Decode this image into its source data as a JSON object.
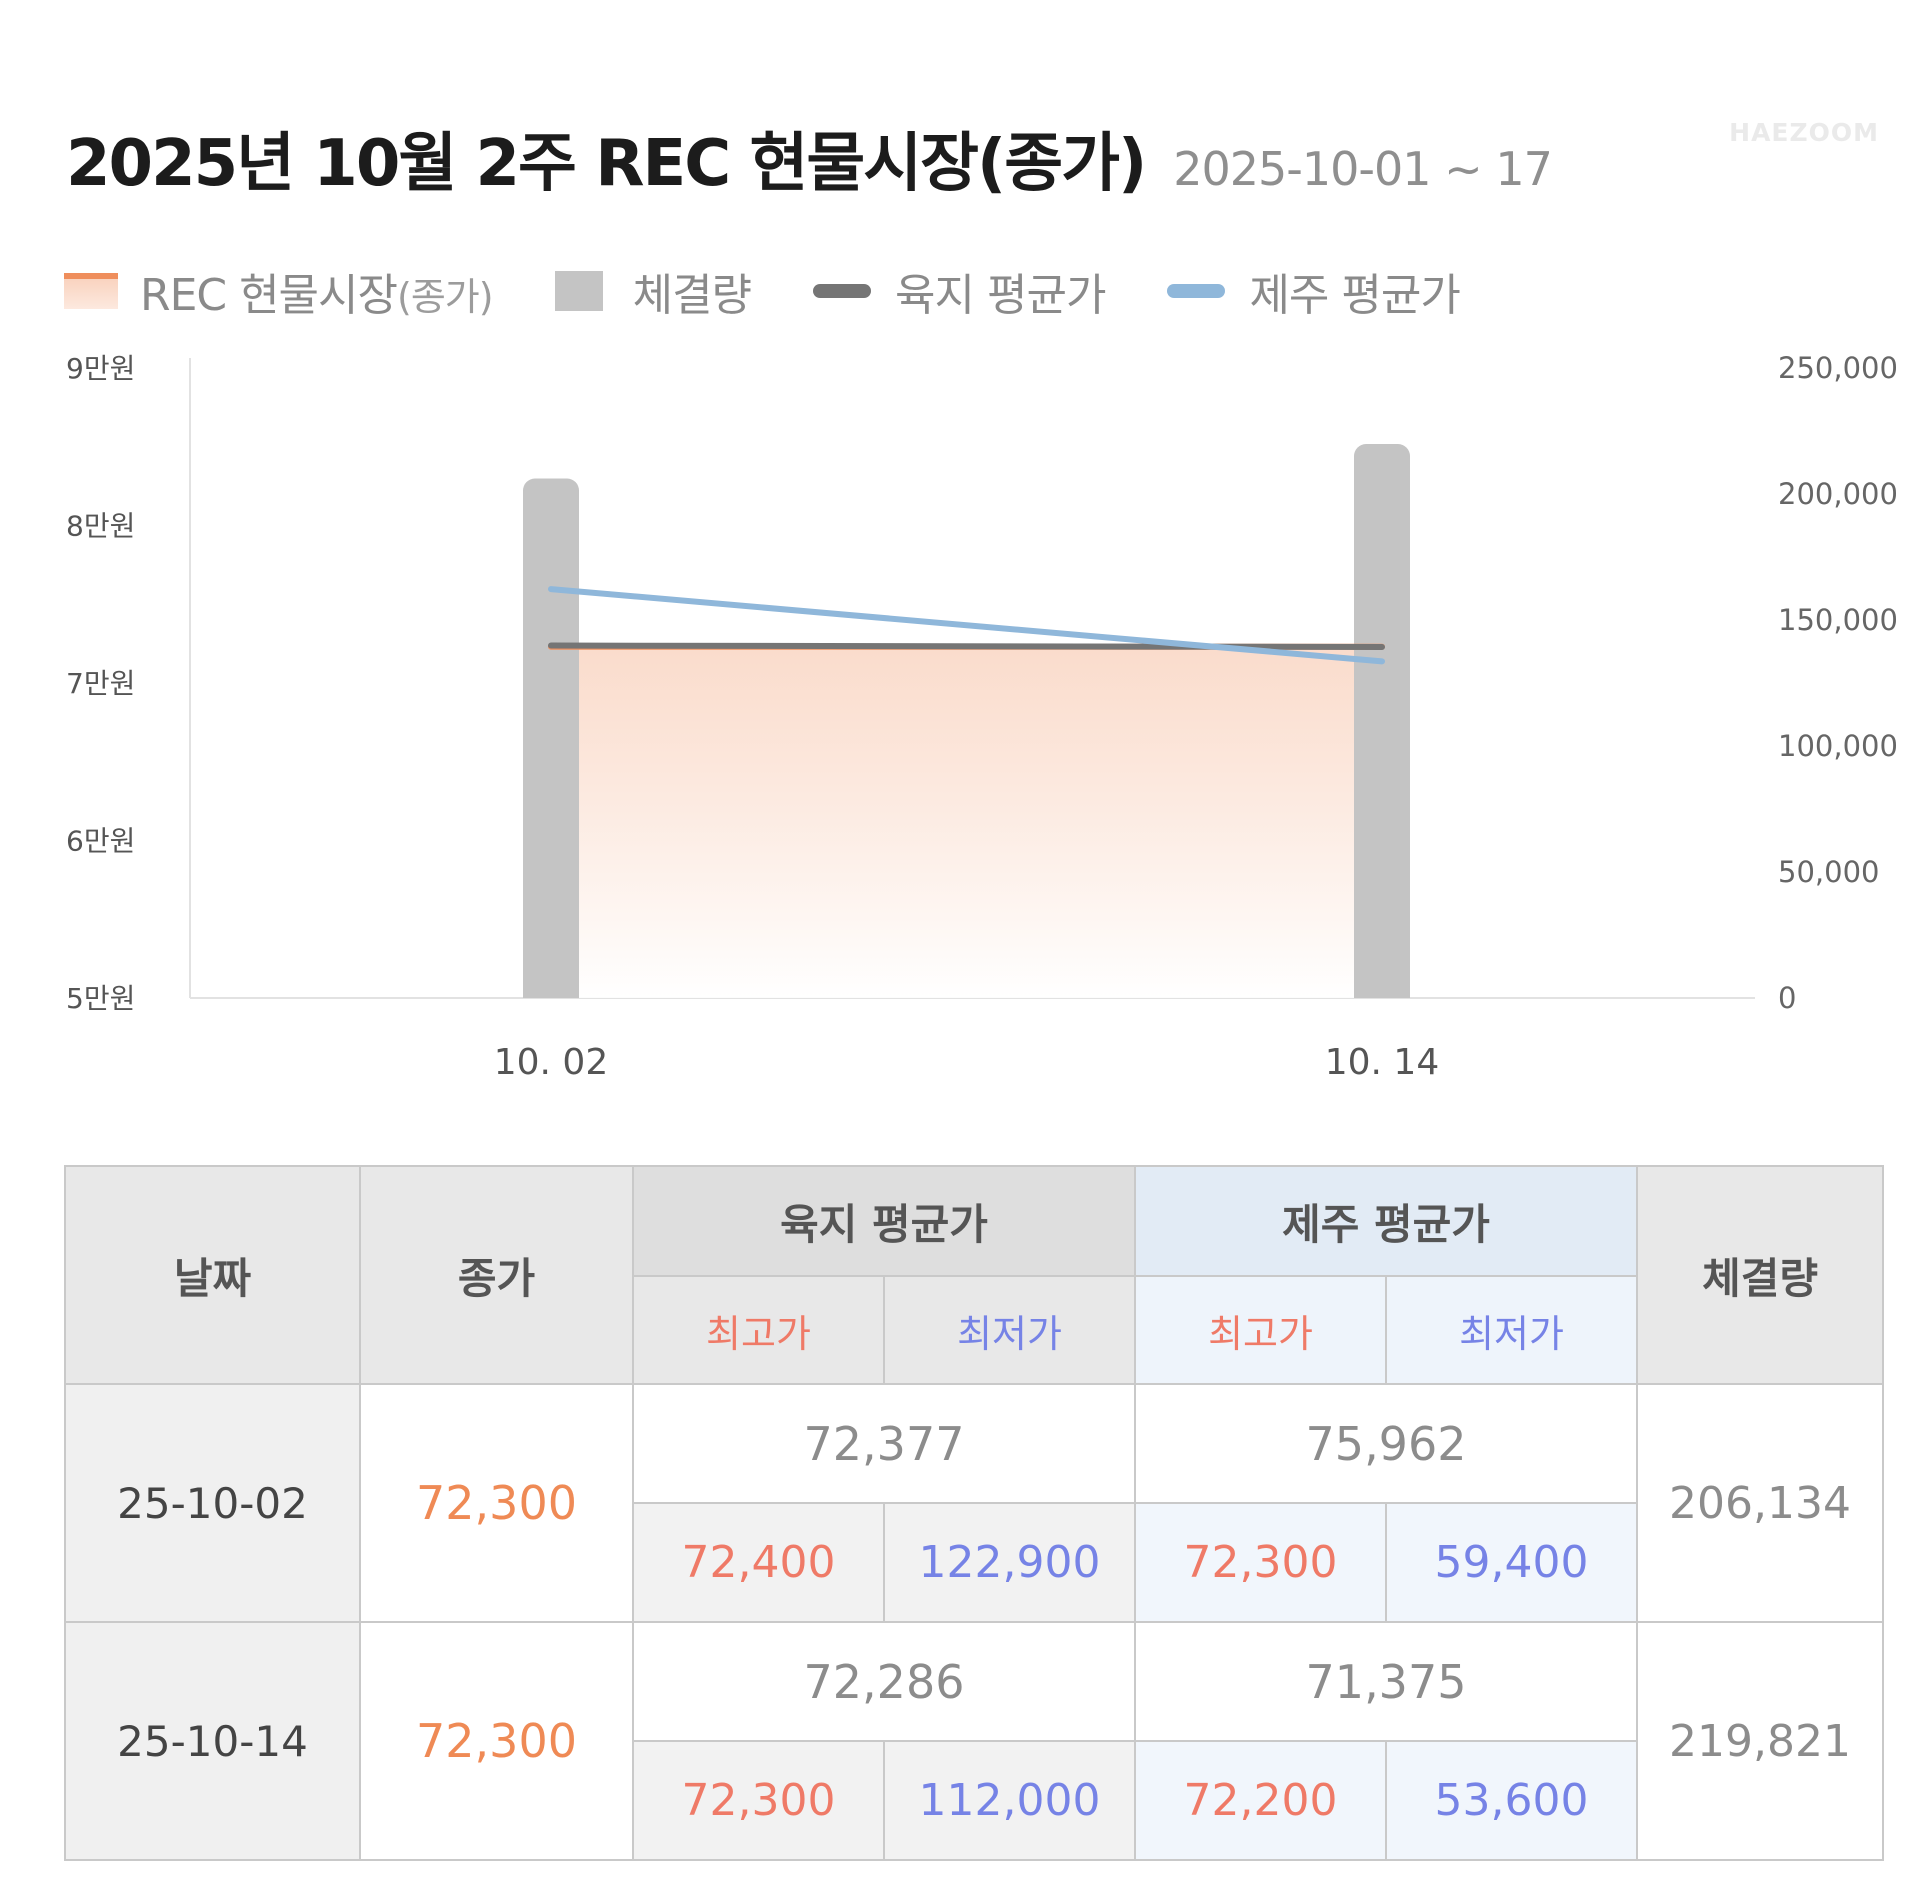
{
  "header": {
    "title": "2025년 10월 2주 REC 현물시장(종가)",
    "subtitle": "2025-10-01 ~ 17",
    "watermark": "HAEZOOM"
  },
  "legend": {
    "close_main": "REC 현물시장",
    "close_paren": "(종가)",
    "volume": "체결량",
    "land": "육지 평균가",
    "jeju": "제주 평균가"
  },
  "colors": {
    "close_line": "#ef8e5c",
    "close_fill_top": "#f9d3bf",
    "volume_bar": "#c4c4c4",
    "land_line": "#757575",
    "jeju_line": "#8fb7da",
    "high": "#ef7a67",
    "low": "#7683e6"
  },
  "chart_data": {
    "type": "bar+line+area",
    "categories": [
      "10. 02",
      "10. 14"
    ],
    "y_left": {
      "ticks": [
        "9만원",
        "8만원",
        "7만원",
        "6만원",
        "5만원"
      ],
      "range": [
        50000,
        90000
      ]
    },
    "y_right": {
      "ticks": [
        "250,000",
        "200,000",
        "150,000",
        "100,000",
        "50,000",
        "0"
      ],
      "range": [
        0,
        250000
      ]
    },
    "series": [
      {
        "name": "REC 현물시장(종가)",
        "type": "area",
        "axis": "left",
        "values": [
          72300,
          72300
        ]
      },
      {
        "name": "체결량",
        "type": "bar",
        "axis": "right",
        "values": [
          206134,
          219821
        ]
      },
      {
        "name": "육지 평균가",
        "type": "line",
        "axis": "left",
        "values": [
          72377,
          72286
        ]
      },
      {
        "name": "제주 평균가",
        "type": "line",
        "axis": "left",
        "values": [
          75962,
          71375
        ]
      }
    ],
    "grid": false
  },
  "table": {
    "headers": {
      "date": "날짜",
      "close": "종가",
      "land": "육지 평균가",
      "jeju": "제주 평균가",
      "volume": "체결량",
      "land_high": "최고가",
      "land_low": "최저가",
      "jeju_high": "최고가",
      "jeju_low": "최저가"
    },
    "rows": [
      {
        "date": "25-10-02",
        "close": "72,300",
        "land_avg": "72,377",
        "land_high": "72,400",
        "land_low": "122,900",
        "jeju_avg": "75,962",
        "jeju_high": "72,300",
        "jeju_low": "59,400",
        "volume": "206,134"
      },
      {
        "date": "25-10-14",
        "close": "72,300",
        "land_avg": "72,286",
        "land_high": "72,300",
        "land_low": "112,000",
        "jeju_avg": "71,375",
        "jeju_high": "72,200",
        "jeju_low": "53,600",
        "volume": "219,821"
      }
    ]
  }
}
